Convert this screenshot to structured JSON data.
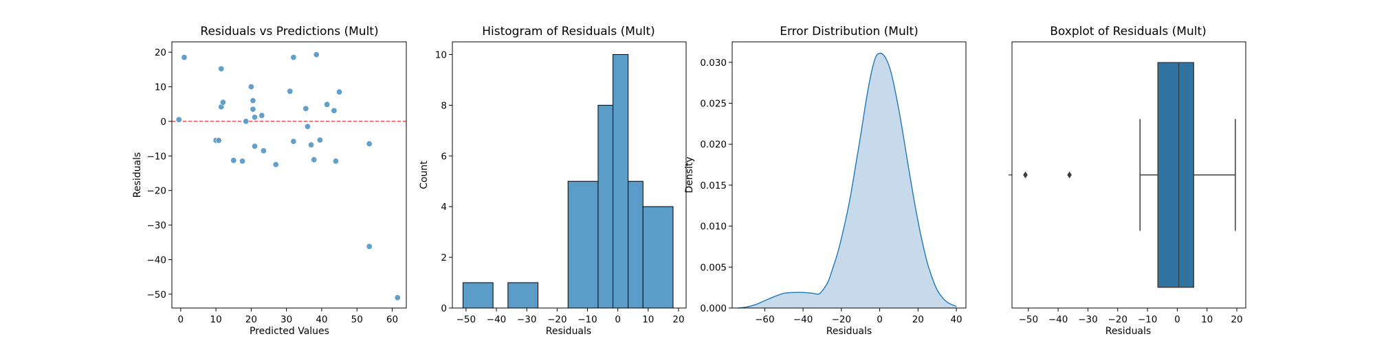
{
  "chart_data": [
    {
      "type": "scatter",
      "title": "Residuals vs Predictions (Mult)",
      "xlabel": "Predicted Values",
      "ylabel": "Residuals",
      "xlim": [
        -2.5,
        64
      ],
      "ylim": [
        -54,
        23
      ],
      "xticks": [
        0,
        10,
        20,
        30,
        40,
        50,
        60
      ],
      "yticks": [
        20,
        10,
        0,
        -10,
        -20,
        -30,
        -40,
        -50
      ],
      "point_color": "#5a9bc8",
      "reference_line": {
        "y": 0,
        "color": "#e8262b",
        "style": "dashed"
      },
      "points": [
        {
          "x": -0.5,
          "y": 0.5
        },
        {
          "x": 1,
          "y": 18.5
        },
        {
          "x": 10,
          "y": -5.5
        },
        {
          "x": 10.8,
          "y": -5.5
        },
        {
          "x": 11.5,
          "y": 15.2
        },
        {
          "x": 11.5,
          "y": 4.2
        },
        {
          "x": 12,
          "y": 5.5
        },
        {
          "x": 15,
          "y": -11.3
        },
        {
          "x": 17.5,
          "y": -11.5
        },
        {
          "x": 18.5,
          "y": 0
        },
        {
          "x": 20,
          "y": 10
        },
        {
          "x": 20.5,
          "y": 6
        },
        {
          "x": 20.5,
          "y": 3.5
        },
        {
          "x": 21,
          "y": 1.2
        },
        {
          "x": 21,
          "y": -7.2
        },
        {
          "x": 23,
          "y": 1.7
        },
        {
          "x": 23.5,
          "y": -8.5
        },
        {
          "x": 27,
          "y": -12.5
        },
        {
          "x": 31,
          "y": 8.7
        },
        {
          "x": 32,
          "y": 18.5
        },
        {
          "x": 32,
          "y": -5.8
        },
        {
          "x": 35.5,
          "y": 3.7
        },
        {
          "x": 36,
          "y": -1.5
        },
        {
          "x": 37,
          "y": -6.8
        },
        {
          "x": 37.8,
          "y": -11.1
        },
        {
          "x": 38.5,
          "y": 19.3
        },
        {
          "x": 39.5,
          "y": -5.4
        },
        {
          "x": 41.5,
          "y": 4.9
        },
        {
          "x": 43.5,
          "y": 3.1
        },
        {
          "x": 44,
          "y": -11.5
        },
        {
          "x": 45,
          "y": 8.5
        },
        {
          "x": 53.5,
          "y": -6.5
        },
        {
          "x": 53.5,
          "y": -36.2
        },
        {
          "x": 61.5,
          "y": -51
        }
      ]
    },
    {
      "type": "bar",
      "title": "Histogram of Residuals (Mult)",
      "xlabel": "Residuals",
      "ylabel": "Count",
      "xlim": [
        -54.5,
        22.5
      ],
      "ylim": [
        0,
        10.5
      ],
      "xticks": [
        -50,
        -40,
        -30,
        -20,
        -10,
        0,
        10,
        20
      ],
      "yticks": [
        0,
        2,
        4,
        6,
        8,
        10
      ],
      "bar_color": "#5a9bc8",
      "bins": [
        {
          "x0": -51,
          "x1": -41.1,
          "count": 1
        },
        {
          "x0": -41.1,
          "x1": -36.2,
          "count": 0
        },
        {
          "x0": -36.2,
          "x1": -26.3,
          "count": 1
        },
        {
          "x0": -26.3,
          "x1": -21.4,
          "count": 0
        },
        {
          "x0": -21.4,
          "x1": -16.4,
          "count": 0
        },
        {
          "x0": -16.4,
          "x1": -6.5,
          "count": 5
        },
        {
          "x0": -6.5,
          "x1": -1.6,
          "count": 8
        },
        {
          "x0": -1.6,
          "x1": 3.4,
          "count": 10
        },
        {
          "x0": 3.4,
          "x1": 8.3,
          "count": 5
        },
        {
          "x0": 8.3,
          "x1": 18.2,
          "count": 4
        }
      ]
    },
    {
      "type": "area",
      "title": "Error Distribution (Mult)",
      "xlabel": "Residuals",
      "ylabel": "Density",
      "xlim": [
        -77,
        45
      ],
      "ylim": [
        0,
        0.0325
      ],
      "xticks": [
        -60,
        -40,
        -20,
        0,
        20,
        40
      ],
      "yticks": [
        0.0,
        0.005,
        0.01,
        0.015,
        0.02,
        0.025,
        0.03
      ],
      "ytick_labels": [
        "0.000",
        "0.005",
        "0.010",
        "0.015",
        "0.020",
        "0.025",
        "0.030"
      ],
      "line_color": "#1f77b4",
      "fill_color": "#c6daeb",
      "x": [
        -74,
        -70,
        -65,
        -60,
        -55,
        -50,
        -45,
        -40,
        -35,
        -32,
        -30,
        -27,
        -25,
        -22,
        -20,
        -17,
        -15,
        -12,
        -10,
        -8,
        -6,
        -4,
        -2,
        0,
        2,
        4,
        6,
        8,
        10,
        12,
        15,
        18,
        20,
        22,
        25,
        28,
        30,
        33,
        36,
        40
      ],
      "y": [
        0,
        0.0001,
        0.0004,
        0.0009,
        0.0014,
        0.0018,
        0.0019,
        0.0019,
        0.0018,
        0.0017,
        0.0021,
        0.0032,
        0.0045,
        0.0067,
        0.0085,
        0.0116,
        0.014,
        0.0182,
        0.021,
        0.024,
        0.0268,
        0.0291,
        0.0307,
        0.0311,
        0.0309,
        0.0301,
        0.0287,
        0.0266,
        0.0242,
        0.0215,
        0.0172,
        0.0131,
        0.0106,
        0.0083,
        0.0054,
        0.0033,
        0.0022,
        0.0012,
        0.0006,
        0.0002
      ]
    },
    {
      "type": "boxplot",
      "title": "Boxplot of Residuals (Mult)",
      "xlabel": "Residuals",
      "ylabel": "",
      "xlim": [
        -55.5,
        23
      ],
      "xticks": [
        -50,
        -40,
        -30,
        -20,
        -10,
        0,
        10,
        20
      ],
      "box_color": "#3274a1",
      "whisker_low": -12.5,
      "q1": -6.5,
      "median": 0.5,
      "q3": 5.5,
      "whisker_high": 19.5,
      "outliers": [
        -51,
        -36.2
      ]
    }
  ]
}
